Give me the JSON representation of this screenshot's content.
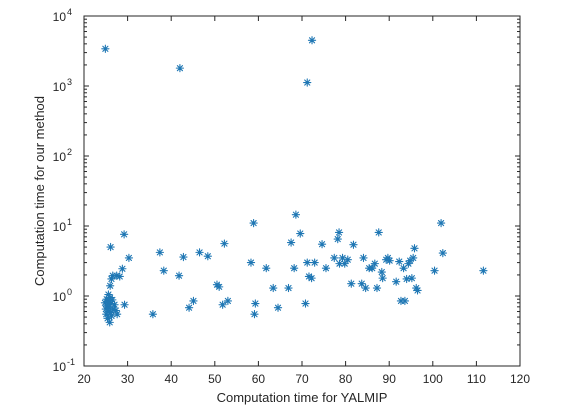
{
  "chart_data": {
    "type": "scatter",
    "title": "",
    "xlabel": "Computation time for YALMIP",
    "ylabel": "Computation time for our method",
    "xlim": [
      20,
      120
    ],
    "ylim": [
      0.1,
      10000
    ],
    "yscale": "log",
    "grid": false,
    "marker": "asterisk",
    "marker_color": "#1f77b4",
    "x_ticks": [
      20,
      30,
      40,
      50,
      60,
      70,
      80,
      90,
      100,
      110,
      120
    ],
    "x_tick_labels": [
      "20",
      "30",
      "40",
      "50",
      "60",
      "70",
      "80",
      "90",
      "100",
      "110",
      "120"
    ],
    "y_ticks": [
      0.1,
      1,
      10,
      100,
      1000,
      10000
    ],
    "y_tick_labels": [
      {
        "base": "10",
        "exp": "-1"
      },
      {
        "base": "10",
        "exp": "0"
      },
      {
        "base": "10",
        "exp": "1"
      },
      {
        "base": "10",
        "exp": "2"
      },
      {
        "base": "10",
        "exp": "3"
      },
      {
        "base": "10",
        "exp": "4"
      }
    ],
    "points": [
      [
        24.9,
        3400
      ],
      [
        42.0,
        1800
      ],
      [
        71.2,
        1120
      ],
      [
        72.3,
        4500
      ],
      [
        24.8,
        0.8
      ],
      [
        25.0,
        0.65
      ],
      [
        25.1,
        0.55
      ],
      [
        25.2,
        0.9
      ],
      [
        25.3,
        0.72
      ],
      [
        25.4,
        0.48
      ],
      [
        25.5,
        0.85
      ],
      [
        25.6,
        1.05
      ],
      [
        25.7,
        0.6
      ],
      [
        25.8,
        0.7
      ],
      [
        25.9,
        0.42
      ],
      [
        26.0,
        0.95
      ],
      [
        26.1,
        0.58
      ],
      [
        26.2,
        0.78
      ],
      [
        26.3,
        0.52
      ],
      [
        26.5,
        0.88
      ],
      [
        26.7,
        0.65
      ],
      [
        27.0,
        0.75
      ],
      [
        27.3,
        0.62
      ],
      [
        27.6,
        0.55
      ],
      [
        26.0,
        1.4
      ],
      [
        26.3,
        1.75
      ],
      [
        26.6,
        1.95
      ],
      [
        27.5,
        1.95
      ],
      [
        28.2,
        1.9
      ],
      [
        26.1,
        5.0
      ],
      [
        28.8,
        2.45
      ],
      [
        29.2,
        7.6
      ],
      [
        29.3,
        0.75
      ],
      [
        30.3,
        3.5
      ],
      [
        35.8,
        0.55
      ],
      [
        37.4,
        4.2
      ],
      [
        38.3,
        2.3
      ],
      [
        41.8,
        1.95
      ],
      [
        42.8,
        3.6
      ],
      [
        44.1,
        0.68
      ],
      [
        45.1,
        0.85
      ],
      [
        46.5,
        4.2
      ],
      [
        48.4,
        3.7
      ],
      [
        50.5,
        1.45
      ],
      [
        51.0,
        1.35
      ],
      [
        51.8,
        0.75
      ],
      [
        52.2,
        5.6
      ],
      [
        53.0,
        0.85
      ],
      [
        58.3,
        3.0
      ],
      [
        58.9,
        11.0
      ],
      [
        59.1,
        0.55
      ],
      [
        59.3,
        0.78
      ],
      [
        61.8,
        2.5
      ],
      [
        63.4,
        1.3
      ],
      [
        64.5,
        0.68
      ],
      [
        66.9,
        1.3
      ],
      [
        67.5,
        5.8
      ],
      [
        68.2,
        2.5
      ],
      [
        68.6,
        14.5
      ],
      [
        69.6,
        7.8
      ],
      [
        70.8,
        0.78
      ],
      [
        71.2,
        3.0
      ],
      [
        71.6,
        1.9
      ],
      [
        72.2,
        1.8
      ],
      [
        72.9,
        3.0
      ],
      [
        74.6,
        5.5
      ],
      [
        75.5,
        2.5
      ],
      [
        77.4,
        3.5
      ],
      [
        78.2,
        6.5
      ],
      [
        78.5,
        8.1
      ],
      [
        78.6,
        2.9
      ],
      [
        79.3,
        3.5
      ],
      [
        79.8,
        2.9
      ],
      [
        80.5,
        3.3
      ],
      [
        81.3,
        1.5
      ],
      [
        81.8,
        5.4
      ],
      [
        83.7,
        1.5
      ],
      [
        84.1,
        3.5
      ],
      [
        84.6,
        1.3
      ],
      [
        85.4,
        2.5
      ],
      [
        86.1,
        2.5
      ],
      [
        86.7,
        2.9
      ],
      [
        87.2,
        1.3
      ],
      [
        87.6,
        8.1
      ],
      [
        88.3,
        2.2
      ],
      [
        88.5,
        1.8
      ],
      [
        89.3,
        3.3
      ],
      [
        89.7,
        3.5
      ],
      [
        90.1,
        3.2
      ],
      [
        91.6,
        1.6
      ],
      [
        92.3,
        3.1
      ],
      [
        92.7,
        0.85
      ],
      [
        93.3,
        2.5
      ],
      [
        93.6,
        0.85
      ],
      [
        94.0,
        1.75
      ],
      [
        94.4,
        2.9
      ],
      [
        94.8,
        3.2
      ],
      [
        95.2,
        1.8
      ],
      [
        95.5,
        3.5
      ],
      [
        95.8,
        4.8
      ],
      [
        96.2,
        1.3
      ],
      [
        96.5,
        1.2
      ],
      [
        100.4,
        2.3
      ],
      [
        101.9,
        11.0
      ],
      [
        102.3,
        4.1
      ],
      [
        111.6,
        2.3
      ]
    ]
  }
}
